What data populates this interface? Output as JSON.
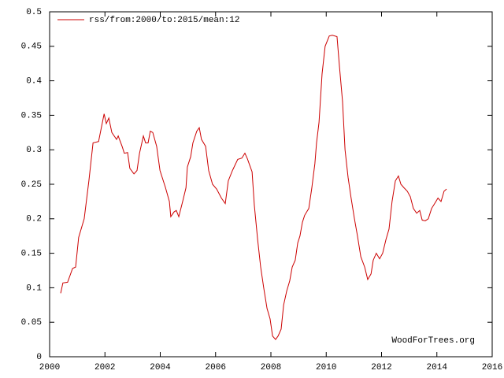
{
  "chart_data": {
    "type": "line",
    "legend": "upper left",
    "annotation": "WoodForTrees.org",
    "x": [
      2000.4,
      2000.48,
      2000.65,
      2000.83,
      2000.94,
      2001.05,
      2001.25,
      2001.42,
      2001.57,
      2001.77,
      2001.97,
      2002.05,
      2002.14,
      2002.25,
      2002.42,
      2002.48,
      2002.62,
      2002.7,
      2002.82,
      2002.9,
      2003.05,
      2003.16,
      2003.25,
      2003.39,
      2003.47,
      2003.56,
      2003.64,
      2003.73,
      2003.87,
      2003.99,
      2004.19,
      2004.33,
      2004.38,
      2004.5,
      2004.58,
      2004.67,
      2004.81,
      2004.93,
      2004.98,
      2005.1,
      2005.18,
      2005.32,
      2005.41,
      2005.49,
      2005.64,
      2005.75,
      2005.89,
      2006.04,
      2006.21,
      2006.35,
      2006.46,
      2006.61,
      2006.8,
      2006.95,
      2007.06,
      2007.15,
      2007.23,
      2007.32,
      2007.4,
      2007.52,
      2007.63,
      2007.74,
      2007.86,
      2007.97,
      2008.06,
      2008.17,
      2008.26,
      2008.37,
      2008.46,
      2008.57,
      2008.68,
      2008.77,
      2008.88,
      2008.97,
      2009.05,
      2009.14,
      2009.22,
      2009.37,
      2009.48,
      2009.59,
      2009.65,
      2009.74,
      2009.85,
      2009.96,
      2010.11,
      2010.22,
      2010.39,
      2010.48,
      2010.59,
      2010.68,
      2010.79,
      2010.9,
      2011.02,
      2011.13,
      2011.25,
      2011.39,
      2011.5,
      2011.62,
      2011.7,
      2011.81,
      2011.93,
      2012.04,
      2012.16,
      2012.27,
      2012.38,
      2012.5,
      2012.61,
      2012.7,
      2012.81,
      2012.93,
      2013.04,
      2013.15,
      2013.27,
      2013.38,
      2013.47,
      2013.58,
      2013.69,
      2013.81,
      2013.92,
      2014.04,
      2014.15,
      2014.26,
      2014.35
    ],
    "series": [
      {
        "name": "rss/from:2000/to:2015/mean:12",
        "color": "#cc0000",
        "values": [
          0.092,
          0.107,
          0.108,
          0.128,
          0.13,
          0.173,
          0.2,
          0.255,
          0.31,
          0.312,
          0.352,
          0.338,
          0.346,
          0.325,
          0.315,
          0.32,
          0.305,
          0.295,
          0.296,
          0.273,
          0.265,
          0.27,
          0.295,
          0.32,
          0.31,
          0.31,
          0.327,
          0.325,
          0.305,
          0.27,
          0.245,
          0.225,
          0.203,
          0.21,
          0.212,
          0.203,
          0.225,
          0.245,
          0.275,
          0.29,
          0.31,
          0.327,
          0.332,
          0.315,
          0.305,
          0.27,
          0.25,
          0.243,
          0.23,
          0.222,
          0.255,
          0.27,
          0.286,
          0.288,
          0.295,
          0.287,
          0.278,
          0.268,
          0.22,
          0.17,
          0.13,
          0.1,
          0.07,
          0.055,
          0.03,
          0.025,
          0.03,
          0.04,
          0.075,
          0.095,
          0.11,
          0.13,
          0.14,
          0.165,
          0.175,
          0.195,
          0.205,
          0.215,
          0.245,
          0.28,
          0.31,
          0.34,
          0.41,
          0.45,
          0.465,
          0.466,
          0.464,
          0.42,
          0.37,
          0.3,
          0.26,
          0.23,
          0.2,
          0.175,
          0.145,
          0.13,
          0.112,
          0.12,
          0.14,
          0.15,
          0.142,
          0.15,
          0.17,
          0.185,
          0.225,
          0.255,
          0.262,
          0.25,
          0.245,
          0.24,
          0.232,
          0.215,
          0.208,
          0.212,
          0.198,
          0.197,
          0.2,
          0.215,
          0.222,
          0.23,
          0.225,
          0.24,
          0.243
        ]
      }
    ],
    "xlim": [
      2000,
      2016
    ],
    "xticks": [
      2000,
      2002,
      2004,
      2006,
      2008,
      2010,
      2012,
      2014,
      2016
    ],
    "ylim": [
      0,
      0.5
    ],
    "yticks": [
      0,
      0.05,
      0.1,
      0.15,
      0.2,
      0.25,
      0.3,
      0.35,
      0.4,
      0.45,
      0.5
    ]
  }
}
